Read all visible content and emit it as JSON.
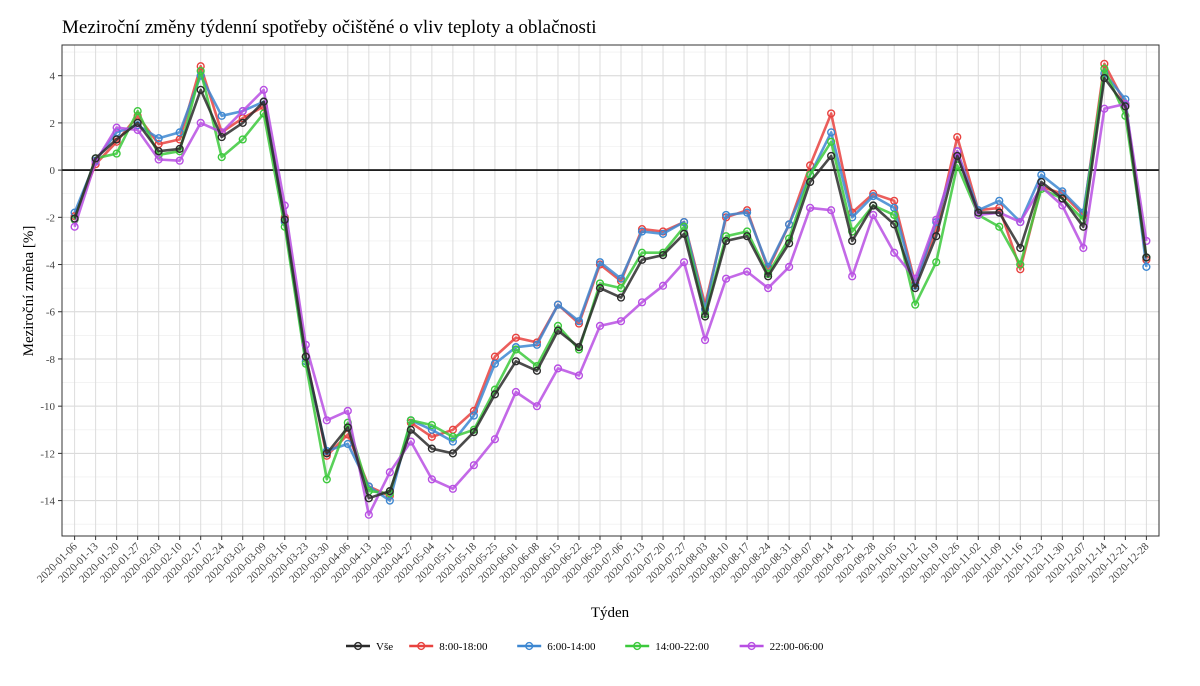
{
  "chart_data": {
    "type": "line",
    "title": "Meziroční změny týdenní spotřeby očištěné o vliv teploty a oblačnosti",
    "xlabel": "Týden",
    "ylabel": "Meziroční změna [%]",
    "ylim": [
      -15.5,
      5.3
    ],
    "yticks": [
      4,
      2,
      0,
      -2,
      -4,
      -6,
      -8,
      -10,
      -12,
      -14
    ],
    "grid": true,
    "legend_position": "bottom",
    "x": [
      "2020-01-06",
      "2020-01-13",
      "2020-01-20",
      "2020-01-27",
      "2020-02-03",
      "2020-02-10",
      "2020-02-17",
      "2020-02-24",
      "2020-03-02",
      "2020-03-09",
      "2020-03-16",
      "2020-03-23",
      "2020-03-30",
      "2020-04-06",
      "2020-04-13",
      "2020-04-20",
      "2020-04-27",
      "2020-05-04",
      "2020-05-11",
      "2020-05-18",
      "2020-05-25",
      "2020-06-01",
      "2020-06-08",
      "2020-06-15",
      "2020-06-22",
      "2020-06-29",
      "2020-07-06",
      "2020-07-13",
      "2020-07-20",
      "2020-07-27",
      "2020-08-03",
      "2020-08-10",
      "2020-08-17",
      "2020-08-24",
      "2020-08-31",
      "2020-09-07",
      "2020-09-14",
      "2020-09-21",
      "2020-09-28",
      "2020-10-05",
      "2020-10-12",
      "2020-10-19",
      "2020-10-26",
      "2020-11-02",
      "2020-11-09",
      "2020-11-16",
      "2020-11-23",
      "2020-11-30",
      "2020-12-07",
      "2020-12-14",
      "2020-12-21",
      "2020-12-28"
    ],
    "series": [
      {
        "name": "8:00-18:00",
        "color": "#e8423f",
        "values": [
          -1.95,
          0.25,
          1.2,
          2.3,
          1.1,
          1.3,
          4.4,
          1.6,
          2.2,
          2.7,
          -2.0,
          -7.9,
          -12.1,
          -11.2,
          -13.4,
          -13.8,
          -10.7,
          -11.3,
          -11.0,
          -10.2,
          -7.9,
          -7.1,
          -7.3,
          -5.7,
          -6.5,
          -4.0,
          -4.7,
          -2.5,
          -2.6,
          -2.2,
          -5.7,
          -2.0,
          -1.7,
          -4.2,
          -2.3,
          0.2,
          2.4,
          -1.8,
          -1.0,
          -1.3,
          -4.8,
          -2.5,
          1.4,
          -1.7,
          -1.6,
          -4.2,
          -0.7,
          -1.0,
          -1.9,
          4.5,
          2.8,
          -3.8
        ]
      },
      {
        "name": "6:00-14:00",
        "color": "#3d87d1",
        "values": [
          -1.8,
          0.4,
          1.6,
          1.9,
          1.35,
          1.6,
          4.0,
          2.3,
          2.5,
          2.9,
          -2.2,
          -8.1,
          -11.9,
          -11.6,
          -13.4,
          -14.0,
          -10.6,
          -11.0,
          -11.5,
          -10.4,
          -8.2,
          -7.5,
          -7.4,
          -5.7,
          -6.4,
          -3.9,
          -4.6,
          -2.6,
          -2.7,
          -2.2,
          -5.9,
          -1.9,
          -1.8,
          -4.1,
          -2.3,
          -0.2,
          1.6,
          -2.0,
          -1.1,
          -1.6,
          -4.9,
          -2.2,
          0.8,
          -1.7,
          -1.3,
          -2.2,
          -0.2,
          -0.9,
          -1.8,
          4.1,
          3.0,
          -4.1
        ]
      },
      {
        "name": "14:00-22:00",
        "color": "#3cc93c",
        "values": [
          -2.1,
          0.5,
          0.7,
          2.5,
          0.65,
          0.8,
          4.2,
          0.55,
          1.3,
          2.4,
          -2.4,
          -8.2,
          -13.1,
          -10.7,
          -13.6,
          -13.7,
          -10.6,
          -10.8,
          -11.3,
          -11.0,
          -9.3,
          -7.6,
          -8.3,
          -6.6,
          -7.6,
          -4.8,
          -5.0,
          -3.5,
          -3.5,
          -2.4,
          -6.1,
          -2.8,
          -2.6,
          -4.4,
          -2.9,
          -0.2,
          1.2,
          -2.6,
          -1.5,
          -1.9,
          -5.7,
          -3.9,
          0.2,
          -1.9,
          -2.4,
          -4.0,
          -0.8,
          -1.2,
          -2.1,
          4.3,
          2.3,
          -3.7
        ]
      },
      {
        "name": "22:00-06:00",
        "color": "#b84fe3",
        "values": [
          -2.4,
          0.35,
          1.8,
          1.7,
          0.45,
          0.4,
          2.0,
          1.6,
          2.5,
          3.4,
          -1.5,
          -7.4,
          -10.6,
          -10.2,
          -14.6,
          -12.8,
          -11.5,
          -13.1,
          -13.5,
          -12.5,
          -11.4,
          -9.4,
          -10.0,
          -8.4,
          -8.7,
          -6.6,
          -6.4,
          -5.6,
          -4.9,
          -3.9,
          -7.2,
          -4.6,
          -4.3,
          -5.0,
          -4.1,
          -1.6,
          -1.7,
          -4.5,
          -1.9,
          -3.5,
          -4.6,
          -2.1,
          0.8,
          -1.9,
          -1.8,
          -2.2,
          -0.7,
          -1.5,
          -3.3,
          2.6,
          2.8,
          -3.0
        ]
      },
      {
        "name": "Vše",
        "color": "#2b2b2b",
        "values": [
          -2.05,
          0.5,
          1.3,
          2.0,
          0.8,
          0.9,
          3.4,
          1.4,
          2.0,
          2.9,
          -2.1,
          -7.9,
          -12.0,
          -10.9,
          -13.9,
          -13.6,
          -11.0,
          -11.8,
          -12.0,
          -11.1,
          -9.5,
          -8.1,
          -8.5,
          -6.8,
          -7.5,
          -5.0,
          -5.4,
          -3.8,
          -3.6,
          -2.7,
          -6.2,
          -3.0,
          -2.8,
          -4.5,
          -3.1,
          -0.5,
          0.6,
          -3.0,
          -1.5,
          -2.3,
          -5.0,
          -2.8,
          0.6,
          -1.8,
          -1.8,
          -3.3,
          -0.5,
          -1.2,
          -2.4,
          3.9,
          2.7,
          -3.7
        ]
      }
    ],
    "legend_order": [
      "Vše",
      "8:00-18:00",
      "6:00-14:00",
      "14:00-22:00",
      "22:00-06:00"
    ]
  }
}
